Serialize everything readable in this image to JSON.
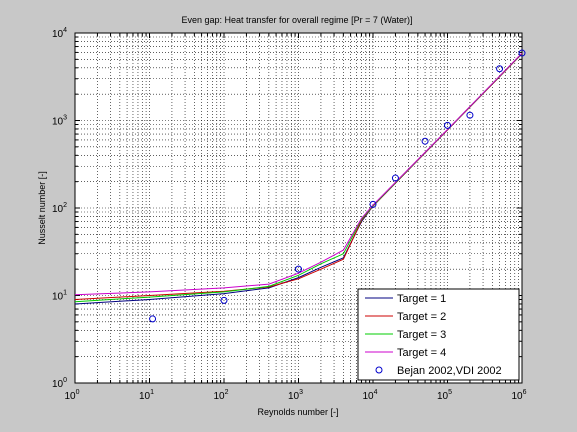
{
  "chart_data": {
    "type": "line",
    "title": "Even gap: Heat transfer for overall regime [Pr = 7 (Water)]",
    "xlabel": "Reynolds number [-]",
    "ylabel": "Nusselt number [-]",
    "xscale": "log",
    "yscale": "log",
    "xlim": [
      1,
      1000000
    ],
    "ylim": [
      1,
      10000
    ],
    "x_ticks": [
      {
        "base": "10",
        "exp": "0"
      },
      {
        "base": "10",
        "exp": "1"
      },
      {
        "base": "10",
        "exp": "2"
      },
      {
        "base": "10",
        "exp": "3"
      },
      {
        "base": "10",
        "exp": "4"
      },
      {
        "base": "10",
        "exp": "5"
      },
      {
        "base": "10",
        "exp": "6"
      }
    ],
    "y_ticks": [
      {
        "base": "10",
        "exp": "0"
      },
      {
        "base": "10",
        "exp": "1"
      },
      {
        "base": "10",
        "exp": "2"
      },
      {
        "base": "10",
        "exp": "3"
      },
      {
        "base": "10",
        "exp": "4"
      }
    ],
    "grid": true,
    "legend_position": "bottom-right",
    "series": [
      {
        "name": "Target = 1",
        "color": "#000080",
        "style": "line",
        "x": [
          1,
          10,
          100,
          400,
          1000,
          2000,
          4000,
          7000,
          10000,
          100000,
          1000000
        ],
        "y": [
          8,
          9,
          10.5,
          12.2,
          16,
          21,
          27,
          70,
          105,
          780,
          5800
        ]
      },
      {
        "name": "Target = 2",
        "color": "#cc0000",
        "style": "line",
        "x": [
          1,
          10,
          100,
          400,
          1000,
          2000,
          4000,
          7000,
          10000,
          100000,
          1000000
        ],
        "y": [
          9,
          10,
          11.2,
          12.5,
          15.5,
          20,
          26,
          72,
          105,
          780,
          5800
        ]
      },
      {
        "name": "Target = 3",
        "color": "#00cc00",
        "style": "line",
        "x": [
          1,
          10,
          100,
          400,
          1000,
          2000,
          4000,
          7000,
          10000,
          100000,
          1000000
        ],
        "y": [
          8.5,
          9.6,
          11,
          12.7,
          17,
          23,
          30,
          74,
          106,
          785,
          5850
        ]
      },
      {
        "name": "Target = 4",
        "color": "#cc00cc",
        "style": "line",
        "x": [
          1,
          10,
          100,
          400,
          1000,
          2000,
          4000,
          7000,
          10000,
          100000,
          1000000
        ],
        "y": [
          10.2,
          11,
          12.2,
          13.5,
          18,
          24,
          33,
          76,
          108,
          790,
          5900
        ]
      },
      {
        "name": "Bejan 2002,VDI 2002",
        "color": "#0000cc",
        "style": "marker",
        "x": [
          11,
          100,
          1000,
          10000,
          20000,
          50000,
          100000,
          200000,
          500000,
          1000000
        ],
        "y": [
          5.4,
          8.8,
          20,
          110,
          220,
          580,
          880,
          1150,
          3900,
          5900
        ]
      }
    ]
  }
}
